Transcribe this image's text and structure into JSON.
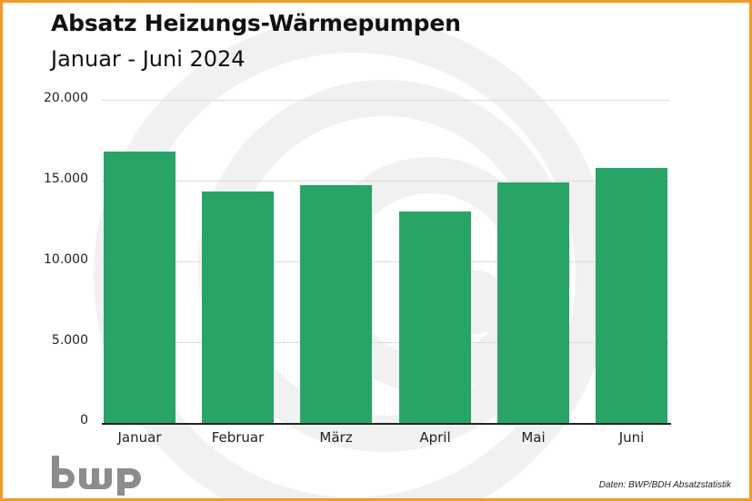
{
  "header": {
    "title": "Absatz Heizungs-Wärmepumpen",
    "subtitle": "Januar - Juni 2024"
  },
  "axis": {
    "yticks": [
      "20.000",
      "15.000",
      "10.000",
      "5.000",
      "0"
    ]
  },
  "bars": [
    {
      "label": "Januar",
      "value": 16800
    },
    {
      "label": "Februar",
      "value": 14300
    },
    {
      "label": "März",
      "value": 14700
    },
    {
      "label": "April",
      "value": 13100
    },
    {
      "label": "Mai",
      "value": 14900
    },
    {
      "label": "Juni",
      "value": 15800
    }
  ],
  "footer": {
    "logo_text": "bwp",
    "source": "Daten: BWP/BDH Absatzstatistik"
  },
  "colors": {
    "bar": "#28a466",
    "border": "#f39a26",
    "logo": "#8c8c8c",
    "swirl": "#f1f1f1"
  },
  "chart_data": {
    "type": "bar",
    "title": "Absatz Heizungs-Wärmepumpen",
    "subtitle": "Januar - Juni 2024",
    "categories": [
      "Januar",
      "Februar",
      "März",
      "April",
      "Mai",
      "Juni"
    ],
    "values": [
      16800,
      14300,
      14700,
      13100,
      14900,
      15800
    ],
    "xlabel": "",
    "ylabel": "",
    "ylim": [
      0,
      20000
    ],
    "yticks": [
      0,
      5000,
      10000,
      15000,
      20000
    ],
    "grid": true,
    "legend": null,
    "annotations": [
      "Daten: BWP/BDH Absatzstatistik"
    ]
  }
}
